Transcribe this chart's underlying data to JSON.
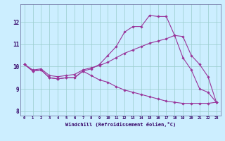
{
  "xlabel": "Windchill (Refroidissement éolien,°C)",
  "bg_color": "#cceeff",
  "line_color": "#993399",
  "grid_color": "#99cccc",
  "series1_x": [
    0,
    1,
    2,
    3,
    4,
    5,
    6,
    7,
    8,
    9,
    10,
    11,
    12,
    13,
    14,
    15,
    16,
    17,
    18,
    19,
    20,
    21,
    22,
    23
  ],
  "series1_y": [
    10.1,
    9.8,
    9.85,
    9.5,
    9.45,
    9.5,
    9.5,
    9.8,
    9.9,
    10.1,
    10.5,
    10.9,
    11.55,
    11.8,
    11.8,
    12.3,
    12.25,
    12.25,
    11.4,
    10.4,
    9.85,
    9.0,
    8.85,
    8.4
  ],
  "series2_x": [
    0,
    1,
    2,
    3,
    4,
    5,
    6,
    7,
    8,
    9,
    10,
    11,
    12,
    13,
    14,
    15,
    16,
    17,
    18,
    19,
    20,
    21,
    22,
    23
  ],
  "series2_y": [
    10.1,
    9.85,
    9.9,
    9.6,
    9.55,
    9.6,
    9.65,
    9.85,
    9.95,
    10.05,
    10.2,
    10.4,
    10.6,
    10.75,
    10.9,
    11.05,
    11.15,
    11.25,
    11.4,
    11.35,
    10.5,
    10.1,
    9.55,
    8.4
  ],
  "series3_x": [
    0,
    1,
    2,
    3,
    4,
    5,
    6,
    7,
    8,
    9,
    10,
    11,
    12,
    13,
    14,
    15,
    16,
    17,
    18,
    19,
    20,
    21,
    22,
    23
  ],
  "series3_y": [
    10.1,
    9.8,
    9.85,
    9.5,
    9.45,
    9.5,
    9.5,
    9.8,
    9.6,
    9.4,
    9.3,
    9.1,
    8.95,
    8.85,
    8.75,
    8.65,
    8.55,
    8.45,
    8.4,
    8.35,
    8.35,
    8.35,
    8.35,
    8.4
  ],
  "ylim": [
    7.8,
    12.8
  ],
  "xlim": [
    -0.5,
    23.5
  ],
  "yticks": [
    8,
    9,
    10,
    11,
    12
  ],
  "xticks": [
    0,
    1,
    2,
    3,
    4,
    5,
    6,
    7,
    8,
    9,
    10,
    11,
    12,
    13,
    14,
    15,
    16,
    17,
    18,
    19,
    20,
    21,
    22,
    23
  ]
}
